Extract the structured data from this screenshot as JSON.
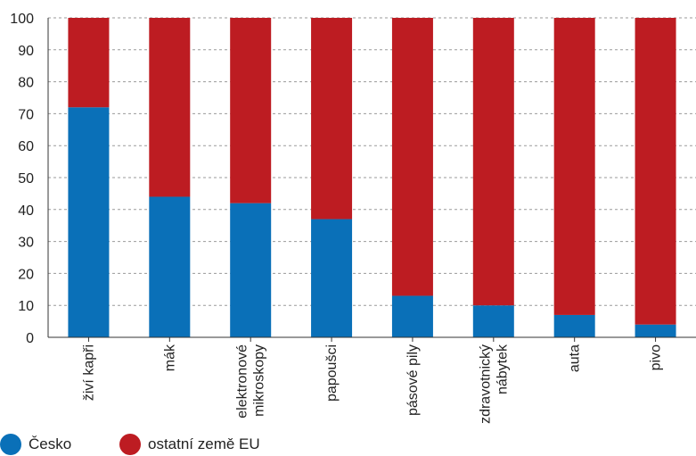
{
  "chart_data": {
    "type": "bar",
    "stacked": true,
    "categories": [
      "živí kapři",
      "mák",
      "elektronové mikroskopy",
      "papoušci",
      "pásové pily",
      "zdravotnický nábytek",
      "auta",
      "pivo"
    ],
    "category_lines": [
      [
        "živí kapři"
      ],
      [
        "mák"
      ],
      [
        "elektronové",
        "mikroskopy"
      ],
      [
        "papoušci"
      ],
      [
        "pásové pily"
      ],
      [
        "zdravotnický",
        "nábytek"
      ],
      [
        "auta"
      ],
      [
        "pivo"
      ]
    ],
    "series": [
      {
        "name": "Česko",
        "color": "#0a70b8",
        "values": [
          72,
          44,
          42,
          37,
          13,
          10,
          7,
          4
        ]
      },
      {
        "name": "ostatní země EU",
        "color": "#bd1c22",
        "values": [
          28,
          56,
          58,
          63,
          87,
          90,
          93,
          96
        ]
      }
    ],
    "yticks": [
      0,
      10,
      20,
      30,
      40,
      50,
      60,
      70,
      80,
      90,
      100
    ],
    "ylim": [
      0,
      100
    ],
    "grid": "horizontal-dashed",
    "legend_position": "bottom-left"
  }
}
